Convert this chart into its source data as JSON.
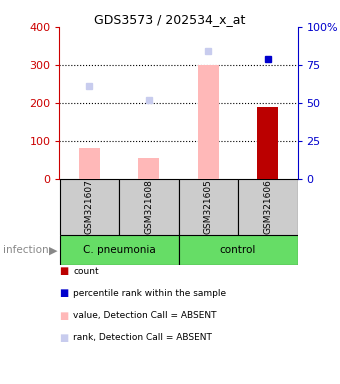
{
  "title": "GDS3573 / 202534_x_at",
  "samples": [
    "GSM321607",
    "GSM321608",
    "GSM321605",
    "GSM321606"
  ],
  "bar_values": [
    80,
    55,
    300,
    190
  ],
  "bar_colors": [
    "#ffb8b8",
    "#ffb8b8",
    "#ffb8b8",
    "#bb0000"
  ],
  "rank_values": [
    245,
    207,
    337,
    315
  ],
  "rank_colors": [
    "#c8ccee",
    "#c8ccee",
    "#c8ccee",
    "#0000cc"
  ],
  "ylim_left": [
    0,
    400
  ],
  "ylim_right": [
    0,
    100
  ],
  "yticks_left": [
    0,
    100,
    200,
    300,
    400
  ],
  "yticks_right": [
    0,
    25,
    50,
    75,
    100
  ],
  "ytick_labels_right": [
    "0",
    "25",
    "50",
    "75",
    "100%"
  ],
  "left_axis_color": "#cc0000",
  "right_axis_color": "#0000cc",
  "sample_box_color": "#cccccc",
  "group_box_color": "#66dd66",
  "infection_label": "infection",
  "legend_colors": [
    "#bb0000",
    "#0000cc",
    "#ffb8b8",
    "#c8ccee"
  ],
  "legend_labels": [
    "count",
    "percentile rank within the sample",
    "value, Detection Call = ABSENT",
    "rank, Detection Call = ABSENT"
  ],
  "bar_width": 0.35
}
